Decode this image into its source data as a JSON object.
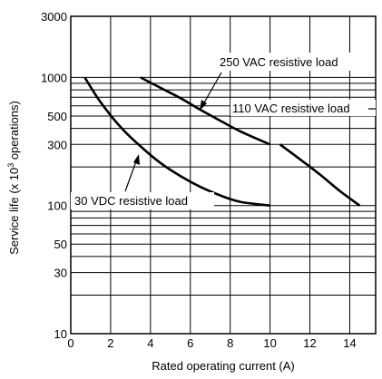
{
  "chart_data": {
    "type": "line",
    "title": "",
    "xlabel": "Rated operating current (A)",
    "ylabel_pre": "Service life (x 10",
    "ylabel_sup": "3",
    "ylabel_post": " operations)",
    "xlim": [
      0,
      15.3
    ],
    "ylim": [
      10,
      3000
    ],
    "yscale": "log",
    "grid": true,
    "x_ticks": [
      0,
      2,
      4,
      6,
      8,
      10,
      12,
      14
    ],
    "x_tick_labels": [
      "0",
      "2",
      "4",
      "6",
      "8",
      "10",
      "12",
      "14"
    ],
    "y_ticks": [
      10,
      30,
      50,
      100,
      300,
      500,
      1000,
      3000
    ],
    "y_tick_labels": [
      "10",
      "30",
      "50",
      "100",
      "300",
      "500",
      "1000",
      "3000"
    ],
    "series": [
      {
        "name": "250 VAC resistive load",
        "x": [
          3.5,
          4.5,
          5.5,
          6.5,
          7.5,
          8.5,
          10
        ],
        "y": [
          1000,
          830,
          690,
          560,
          460,
          380,
          300
        ]
      },
      {
        "name": "110 VAC resistive load",
        "x": [
          10.5,
          11.5,
          12.5,
          13.5,
          14.5
        ],
        "y": [
          300,
          230,
          175,
          130,
          100
        ]
      },
      {
        "name": "30 VDC resistive load",
        "x": [
          0.7,
          1.5,
          2.5,
          3.5,
          4.5,
          5.5,
          6.5,
          7.5,
          8.5,
          10
        ],
        "y": [
          1000,
          640,
          410,
          290,
          215,
          170,
          140,
          120,
          107,
          100
        ]
      }
    ],
    "annotations": [
      {
        "text": "250 VAC resistive load",
        "series": 0
      },
      {
        "text": "110 VAC resistive load",
        "series": 1
      },
      {
        "text": "30 VDC resistive load",
        "series": 2
      }
    ]
  }
}
